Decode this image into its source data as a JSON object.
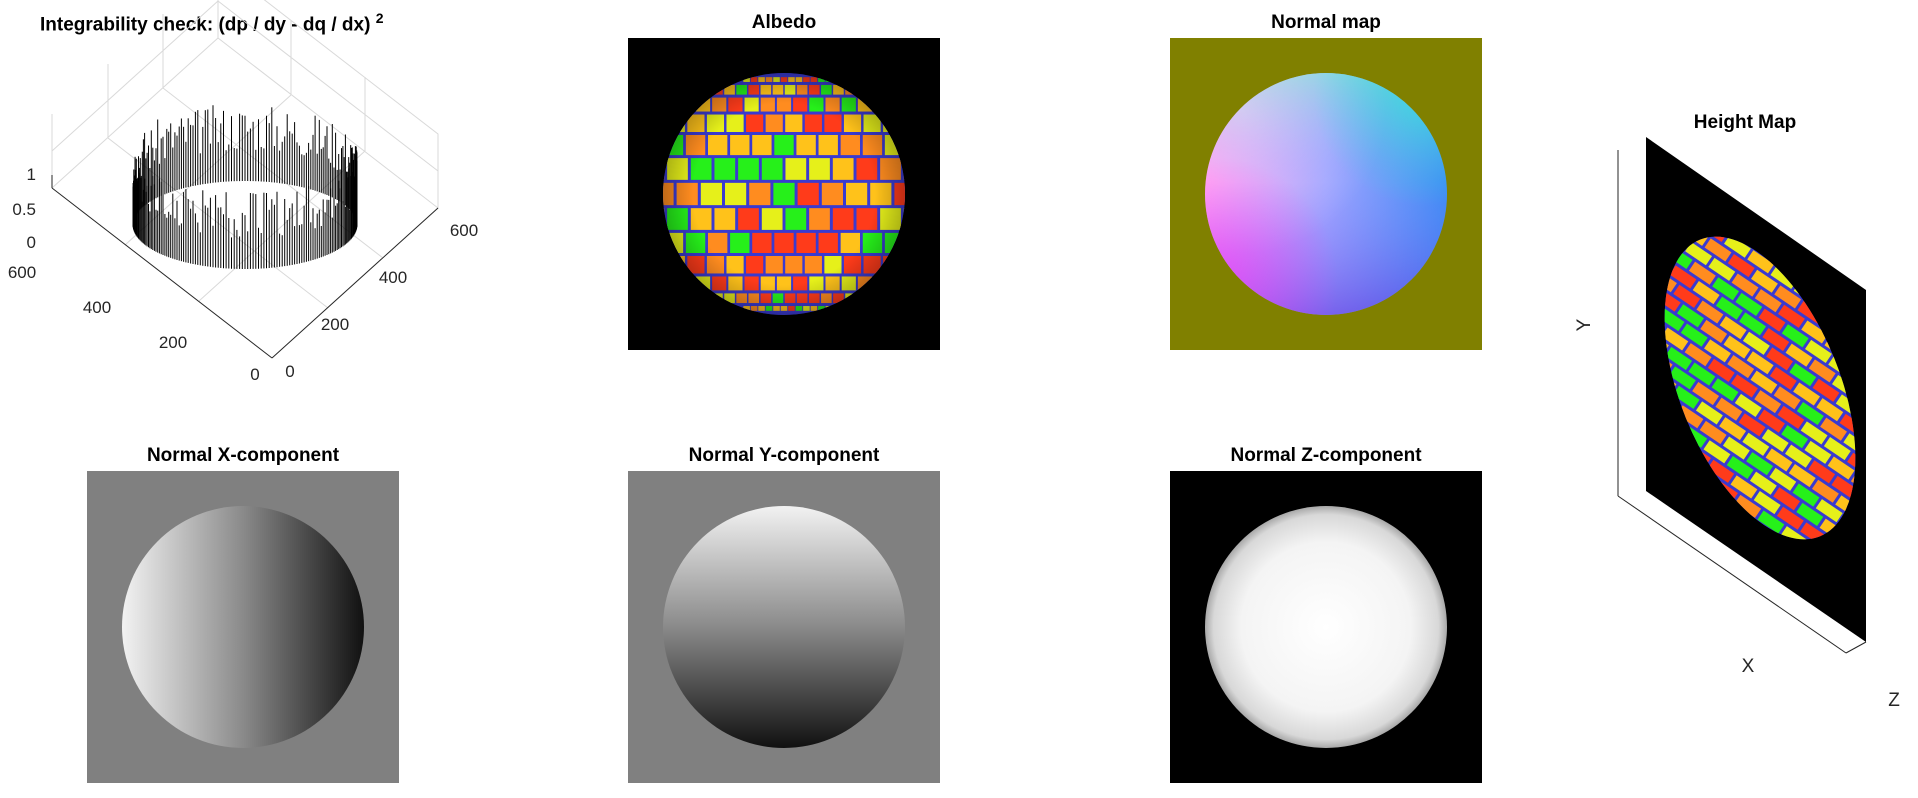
{
  "titles": {
    "integrability_main": "Integrability check: (dp / dy - dq / dx)",
    "integrability_sup": "2",
    "albedo": "Albedo",
    "normal_map": "Normal map",
    "height_map": "Height Map",
    "normal_x": "Normal X-component",
    "normal_y": "Normal Y-component",
    "normal_z": "Normal Z-component"
  },
  "chart_data": [
    {
      "type": "surface",
      "title": "Integrability check: (dp / dy - dq / dx) 2",
      "z_ticks": [
        "0",
        "0.5",
        "1"
      ],
      "x_ticks": [
        "0",
        "200",
        "400",
        "600"
      ],
      "y_ticks": [
        "0",
        "200",
        "400",
        "600"
      ],
      "zlim": [
        0,
        1
      ],
      "xlim": [
        0,
        600
      ],
      "ylim": [
        0,
        600
      ],
      "grid": true,
      "description_values": "spikes concentrated on a ring at the sphere boundary"
    },
    {
      "type": "image",
      "title": "Albedo"
    },
    {
      "type": "image",
      "title": "Normal map"
    },
    {
      "type": "surface",
      "title": "Height Map",
      "xlabel": "X",
      "ylabel": "Y",
      "zlabel": "Z"
    },
    {
      "type": "image",
      "title": "Normal X-component"
    },
    {
      "type": "image",
      "title": "Normal Y-component"
    },
    {
      "type": "image",
      "title": "Normal Z-component"
    }
  ],
  "colors": {
    "albedo_bg": "#000000",
    "normal_map_bg": "#808000",
    "normal_x_bg": "#808080",
    "normal_y_bg": "#808080",
    "normal_z_bg": "#000000",
    "brick_mortar": "#3a3ad0",
    "brick_colors": [
      "#ff3b1a",
      "#ff8c1f",
      "#ffc21a",
      "#e6f01a",
      "#26f01a"
    ]
  }
}
